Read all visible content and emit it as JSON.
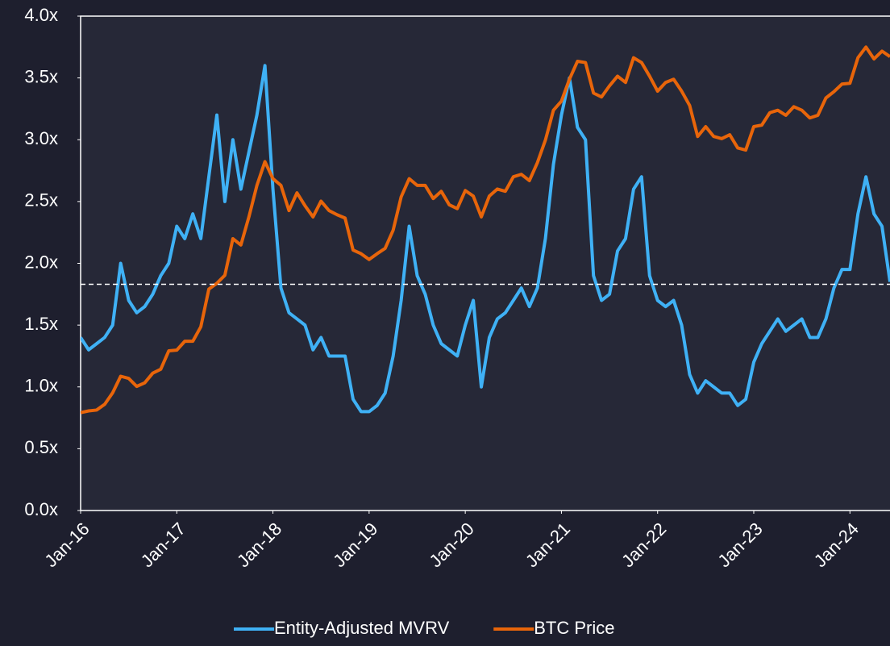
{
  "chart_data": {
    "type": "line",
    "x": [
      "2016-01",
      "2016-02",
      "2016-03",
      "2016-04",
      "2016-05",
      "2016-06",
      "2016-07",
      "2016-08",
      "2016-09",
      "2016-10",
      "2016-11",
      "2016-12",
      "2017-01",
      "2017-02",
      "2017-03",
      "2017-04",
      "2017-05",
      "2017-06",
      "2017-07",
      "2017-08",
      "2017-09",
      "2017-10",
      "2017-11",
      "2017-12",
      "2018-01",
      "2018-02",
      "2018-03",
      "2018-04",
      "2018-05",
      "2018-06",
      "2018-07",
      "2018-08",
      "2018-09",
      "2018-10",
      "2018-11",
      "2018-12",
      "2019-01",
      "2019-02",
      "2019-03",
      "2019-04",
      "2019-05",
      "2019-06",
      "2019-07",
      "2019-08",
      "2019-09",
      "2019-10",
      "2019-11",
      "2019-12",
      "2020-01",
      "2020-02",
      "2020-03",
      "2020-04",
      "2020-05",
      "2020-06",
      "2020-07",
      "2020-08",
      "2020-09",
      "2020-10",
      "2020-11",
      "2020-12",
      "2021-01",
      "2021-02",
      "2021-03",
      "2021-04",
      "2021-05",
      "2021-06",
      "2021-07",
      "2021-08",
      "2021-09",
      "2021-10",
      "2021-11",
      "2021-12",
      "2022-01",
      "2022-02",
      "2022-03",
      "2022-04",
      "2022-05",
      "2022-06",
      "2022-07",
      "2022-08",
      "2022-09",
      "2022-10",
      "2022-11",
      "2022-12",
      "2023-01",
      "2023-02",
      "2023-03",
      "2023-04",
      "2023-05",
      "2023-06",
      "2023-07",
      "2023-08",
      "2023-09",
      "2023-10",
      "2023-11",
      "2023-12",
      "2024-01",
      "2024-02",
      "2024-03",
      "2024-04",
      "2024-05",
      "2024-06"
    ],
    "series": [
      {
        "name": "Entity-Adjusted MVRV",
        "color": "#3fb1f5",
        "values": [
          1.4,
          1.3,
          1.35,
          1.4,
          1.5,
          2.0,
          1.7,
          1.6,
          1.65,
          1.75,
          1.9,
          2.0,
          2.3,
          2.2,
          2.4,
          2.2,
          2.7,
          3.2,
          2.5,
          3.0,
          2.6,
          2.9,
          3.2,
          3.6,
          2.6,
          1.8,
          1.6,
          1.55,
          1.5,
          1.3,
          1.4,
          1.25,
          1.25,
          1.25,
          0.9,
          0.8,
          0.8,
          0.85,
          0.95,
          1.25,
          1.7,
          2.3,
          1.9,
          1.75,
          1.5,
          1.35,
          1.3,
          1.25,
          1.5,
          1.7,
          1.0,
          1.4,
          1.55,
          1.6,
          1.7,
          1.8,
          1.65,
          1.8,
          2.2,
          2.8,
          3.2,
          3.5,
          3.1,
          3.0,
          1.9,
          1.7,
          1.75,
          2.1,
          2.2,
          2.6,
          2.7,
          1.9,
          1.7,
          1.65,
          1.7,
          1.5,
          1.1,
          0.95,
          1.05,
          1.0,
          0.95,
          0.95,
          0.85,
          0.9,
          1.2,
          1.35,
          1.45,
          1.55,
          1.45,
          1.5,
          1.55,
          1.4,
          1.4,
          1.55,
          1.8,
          1.95,
          1.95,
          2.4,
          2.7,
          2.4,
          2.3,
          1.85
        ]
      },
      {
        "name": "BTC Price",
        "color": "#e8650a",
        "axis": "y2",
        "values": [
          400,
          410,
          415,
          450,
          530,
          670,
          650,
          580,
          610,
          700,
          740,
          960,
          970,
          1100,
          1100,
          1350,
          2300,
          2500,
          2800,
          4700,
          4300,
          6400,
          10000,
          14000,
          11000,
          10000,
          7000,
          9000,
          7500,
          6400,
          8000,
          7000,
          6600,
          6300,
          4000,
          3800,
          3500,
          3800,
          4100,
          5300,
          8500,
          11000,
          10000,
          10000,
          8300,
          9200,
          7600,
          7200,
          9300,
          8600,
          6400,
          8600,
          9500,
          9200,
          11300,
          11700,
          10700,
          13800,
          19000,
          29000,
          33000,
          45000,
          58000,
          57000,
          37000,
          35000,
          41000,
          47000,
          43000,
          61000,
          57000,
          47000,
          38000,
          43000,
          45000,
          38000,
          31000,
          20000,
          23000,
          20000,
          19400,
          20500,
          17000,
          16500,
          23000,
          23500,
          28000,
          29000,
          27000,
          30500,
          29000,
          26000,
          27000,
          34500,
          37700,
          42000,
          42500,
          61000,
          71000,
          60000,
          67000,
          62000
        ]
      }
    ],
    "xlim": [
      "2016-01",
      "2024-06"
    ],
    "xticks": [
      {
        "value": "2016-01",
        "label": "Jan-16"
      },
      {
        "value": "2017-01",
        "label": "Jan-17"
      },
      {
        "value": "2018-01",
        "label": "Jan-18"
      },
      {
        "value": "2019-01",
        "label": "Jan-19"
      },
      {
        "value": "2020-01",
        "label": "Jan-20"
      },
      {
        "value": "2021-01",
        "label": "Jan-21"
      },
      {
        "value": "2022-01",
        "label": "Jan-22"
      },
      {
        "value": "2023-01",
        "label": "Jan-23"
      },
      {
        "value": "2024-01",
        "label": "Jan-24"
      }
    ],
    "ylim": [
      0,
      4
    ],
    "yticks": [
      {
        "value": 0,
        "label": "0.0x"
      },
      {
        "value": 0.5,
        "label": "0.5x"
      },
      {
        "value": 1,
        "label": "1.0x"
      },
      {
        "value": 1.5,
        "label": "1.5x"
      },
      {
        "value": 2,
        "label": "2.0x"
      },
      {
        "value": 2.5,
        "label": "2.5x"
      },
      {
        "value": 3,
        "label": "3.0x"
      },
      {
        "value": 3.5,
        "label": "3.5x"
      },
      {
        "value": 4,
        "label": "4.0x"
      }
    ],
    "y2lim": [
      100,
      110000
    ],
    "y2scale": "log",
    "reference_line": 1.83,
    "legend": "bottom",
    "grid": false
  }
}
